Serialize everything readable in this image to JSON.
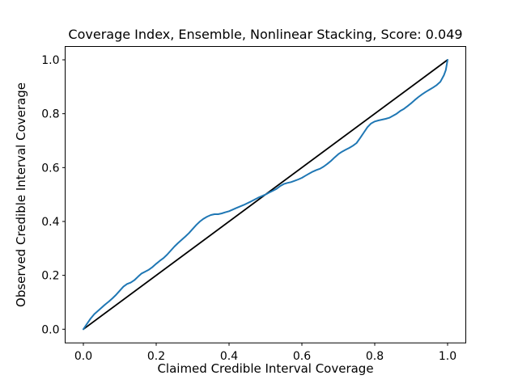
{
  "figure": {
    "background": "#ffffff",
    "frame_color": "#000000",
    "tick_color": "#000000"
  },
  "chart_data": {
    "type": "line",
    "title": "Coverage Index, Ensemble, Nonlinear Stacking, Score: 0.049",
    "xlabel": "Claimed Credible Interval Coverage",
    "ylabel": "Observed Credible Interval Coverage",
    "score": 0.049,
    "xlim": [
      -0.05,
      1.05
    ],
    "ylim": [
      -0.05,
      1.05
    ],
    "xticks": [
      0.0,
      0.2,
      0.4,
      0.6,
      0.8,
      1.0
    ],
    "yticks": [
      0.0,
      0.2,
      0.4,
      0.6,
      0.8,
      1.0
    ],
    "grid": false,
    "legend": null,
    "series": [
      {
        "name": "ideal-diagonal",
        "color": "#000000",
        "width": 1.8,
        "points": [
          [
            0.0,
            0.0
          ],
          [
            1.0,
            1.0
          ]
        ]
      },
      {
        "name": "observed-coverage",
        "color": "#1f77b4",
        "width": 2.0,
        "points": [
          [
            0.0,
            0.0
          ],
          [
            0.01,
            0.02
          ],
          [
            0.02,
            0.04
          ],
          [
            0.03,
            0.056
          ],
          [
            0.04,
            0.068
          ],
          [
            0.05,
            0.08
          ],
          [
            0.06,
            0.092
          ],
          [
            0.07,
            0.103
          ],
          [
            0.08,
            0.115
          ],
          [
            0.09,
            0.128
          ],
          [
            0.1,
            0.143
          ],
          [
            0.11,
            0.158
          ],
          [
            0.12,
            0.168
          ],
          [
            0.13,
            0.173
          ],
          [
            0.14,
            0.182
          ],
          [
            0.15,
            0.195
          ],
          [
            0.16,
            0.207
          ],
          [
            0.17,
            0.214
          ],
          [
            0.18,
            0.221
          ],
          [
            0.19,
            0.231
          ],
          [
            0.2,
            0.243
          ],
          [
            0.21,
            0.254
          ],
          [
            0.22,
            0.264
          ],
          [
            0.23,
            0.277
          ],
          [
            0.24,
            0.292
          ],
          [
            0.25,
            0.307
          ],
          [
            0.26,
            0.32
          ],
          [
            0.27,
            0.332
          ],
          [
            0.28,
            0.344
          ],
          [
            0.29,
            0.357
          ],
          [
            0.3,
            0.372
          ],
          [
            0.31,
            0.387
          ],
          [
            0.32,
            0.4
          ],
          [
            0.33,
            0.41
          ],
          [
            0.34,
            0.418
          ],
          [
            0.35,
            0.424
          ],
          [
            0.36,
            0.427
          ],
          [
            0.37,
            0.427
          ],
          [
            0.38,
            0.43
          ],
          [
            0.39,
            0.434
          ],
          [
            0.4,
            0.438
          ],
          [
            0.42,
            0.45
          ],
          [
            0.44,
            0.461
          ],
          [
            0.46,
            0.474
          ],
          [
            0.48,
            0.488
          ],
          [
            0.5,
            0.5
          ],
          [
            0.51,
            0.507
          ],
          [
            0.52,
            0.514
          ],
          [
            0.53,
            0.521
          ],
          [
            0.54,
            0.531
          ],
          [
            0.55,
            0.539
          ],
          [
            0.56,
            0.543
          ],
          [
            0.57,
            0.546
          ],
          [
            0.58,
            0.551
          ],
          [
            0.59,
            0.556
          ],
          [
            0.6,
            0.562
          ],
          [
            0.61,
            0.57
          ],
          [
            0.62,
            0.578
          ],
          [
            0.63,
            0.585
          ],
          [
            0.64,
            0.591
          ],
          [
            0.65,
            0.596
          ],
          [
            0.66,
            0.604
          ],
          [
            0.67,
            0.614
          ],
          [
            0.68,
            0.625
          ],
          [
            0.69,
            0.638
          ],
          [
            0.7,
            0.65
          ],
          [
            0.71,
            0.659
          ],
          [
            0.72,
            0.666
          ],
          [
            0.73,
            0.673
          ],
          [
            0.74,
            0.681
          ],
          [
            0.75,
            0.691
          ],
          [
            0.76,
            0.71
          ],
          [
            0.77,
            0.73
          ],
          [
            0.78,
            0.75
          ],
          [
            0.79,
            0.764
          ],
          [
            0.8,
            0.771
          ],
          [
            0.81,
            0.775
          ],
          [
            0.82,
            0.778
          ],
          [
            0.83,
            0.781
          ],
          [
            0.84,
            0.785
          ],
          [
            0.85,
            0.792
          ],
          [
            0.86,
            0.8
          ],
          [
            0.87,
            0.81
          ],
          [
            0.88,
            0.818
          ],
          [
            0.89,
            0.828
          ],
          [
            0.9,
            0.839
          ],
          [
            0.91,
            0.851
          ],
          [
            0.92,
            0.862
          ],
          [
            0.93,
            0.872
          ],
          [
            0.94,
            0.881
          ],
          [
            0.95,
            0.889
          ],
          [
            0.96,
            0.897
          ],
          [
            0.97,
            0.906
          ],
          [
            0.98,
            0.918
          ],
          [
            0.99,
            0.943
          ],
          [
            0.995,
            0.962
          ],
          [
            1.0,
            1.0
          ]
        ]
      }
    ]
  }
}
